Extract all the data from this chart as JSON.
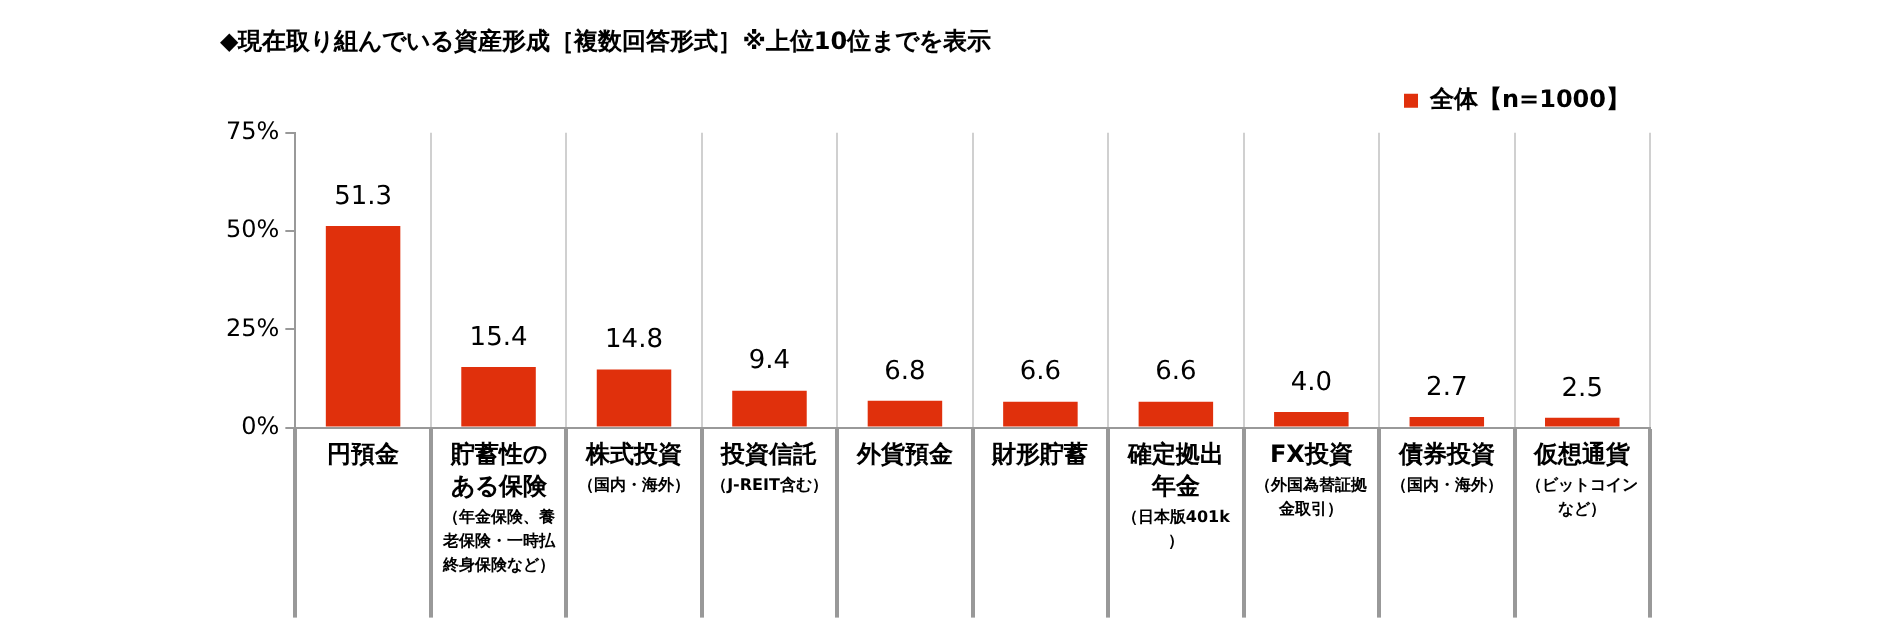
{
  "chart_data": {
    "type": "bar",
    "title": "◆現在取り組んでいる資産形成［複数回答形式］※上位10位までを表示",
    "categories": [
      "円預金",
      "貯蓄性のある保険（年金保険、養老保険・一時払終身保険など）",
      "株式投資（国内・海外）",
      "投資信託（J-REIT含む）",
      "外貨預金",
      "財形貯蓄",
      "確定拠出年金（日本版401k）",
      "FX投資（外国為替証拠金取引）",
      "債券投資（国内・海外）",
      "仮想通貨（ビットコインなど）"
    ],
    "series": [
      {
        "name": "全体【n=1000】",
        "color": "#e0300c",
        "values": [
          51.3,
          15.4,
          14.8,
          9.4,
          6.8,
          6.6,
          6.6,
          4.0,
          2.7,
          2.5
        ]
      }
    ],
    "value_labels": [
      "51.3",
      "15.4",
      "14.8",
      "9.4",
      "6.8",
      "6.6",
      "6.6",
      "4.0",
      "2.7",
      "2.5"
    ],
    "ylim": [
      0,
      75
    ],
    "yticks": [
      {
        "value": 0,
        "label": "0%"
      },
      {
        "value": 25,
        "label": "25%"
      },
      {
        "value": 50,
        "label": "50%"
      },
      {
        "value": 75,
        "label": "75%"
      }
    ],
    "grid": "x",
    "legend": "top right"
  }
}
